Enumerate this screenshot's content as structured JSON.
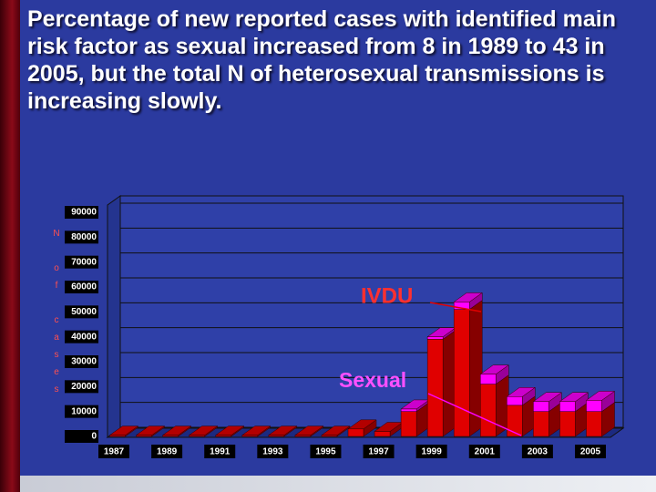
{
  "chart_data": {
    "type": "bar3d_stacked",
    "title": "Percentage of new reported cases  with identified main risk factor as sexual increased from 8 in 1989 to 43 in 2005, but the total N of heterosexual transmissions is increasing slowly.",
    "y_label": "N of cases",
    "categories": [
      "1987",
      null,
      "1989",
      null,
      "1991",
      null,
      "1993",
      null,
      "1995",
      null,
      "1997",
      null,
      "1999",
      null,
      "2001",
      null,
      "2003",
      null,
      "2005"
    ],
    "series": [
      {
        "name": "IVDU",
        "color": "#e00000",
        "values": [
          500,
          500,
          500,
          500,
          500,
          500,
          500,
          500,
          500,
          3000,
          2000,
          10000,
          39000,
          51000,
          21000,
          12500,
          10000,
          10000,
          10000
        ]
      },
      {
        "name": "Sexual",
        "color": "#ff00ff",
        "values": [
          0,
          0,
          0,
          0,
          0,
          0,
          0,
          0,
          0,
          0,
          0,
          1000,
          1000,
          3000,
          4000,
          3500,
          4000,
          4000,
          4500
        ]
      }
    ],
    "ylim": [
      0,
      90000
    ],
    "yticks": [
      0,
      10000,
      20000,
      30000,
      40000,
      50000,
      60000,
      70000,
      80000,
      90000
    ],
    "grid": true
  }
}
